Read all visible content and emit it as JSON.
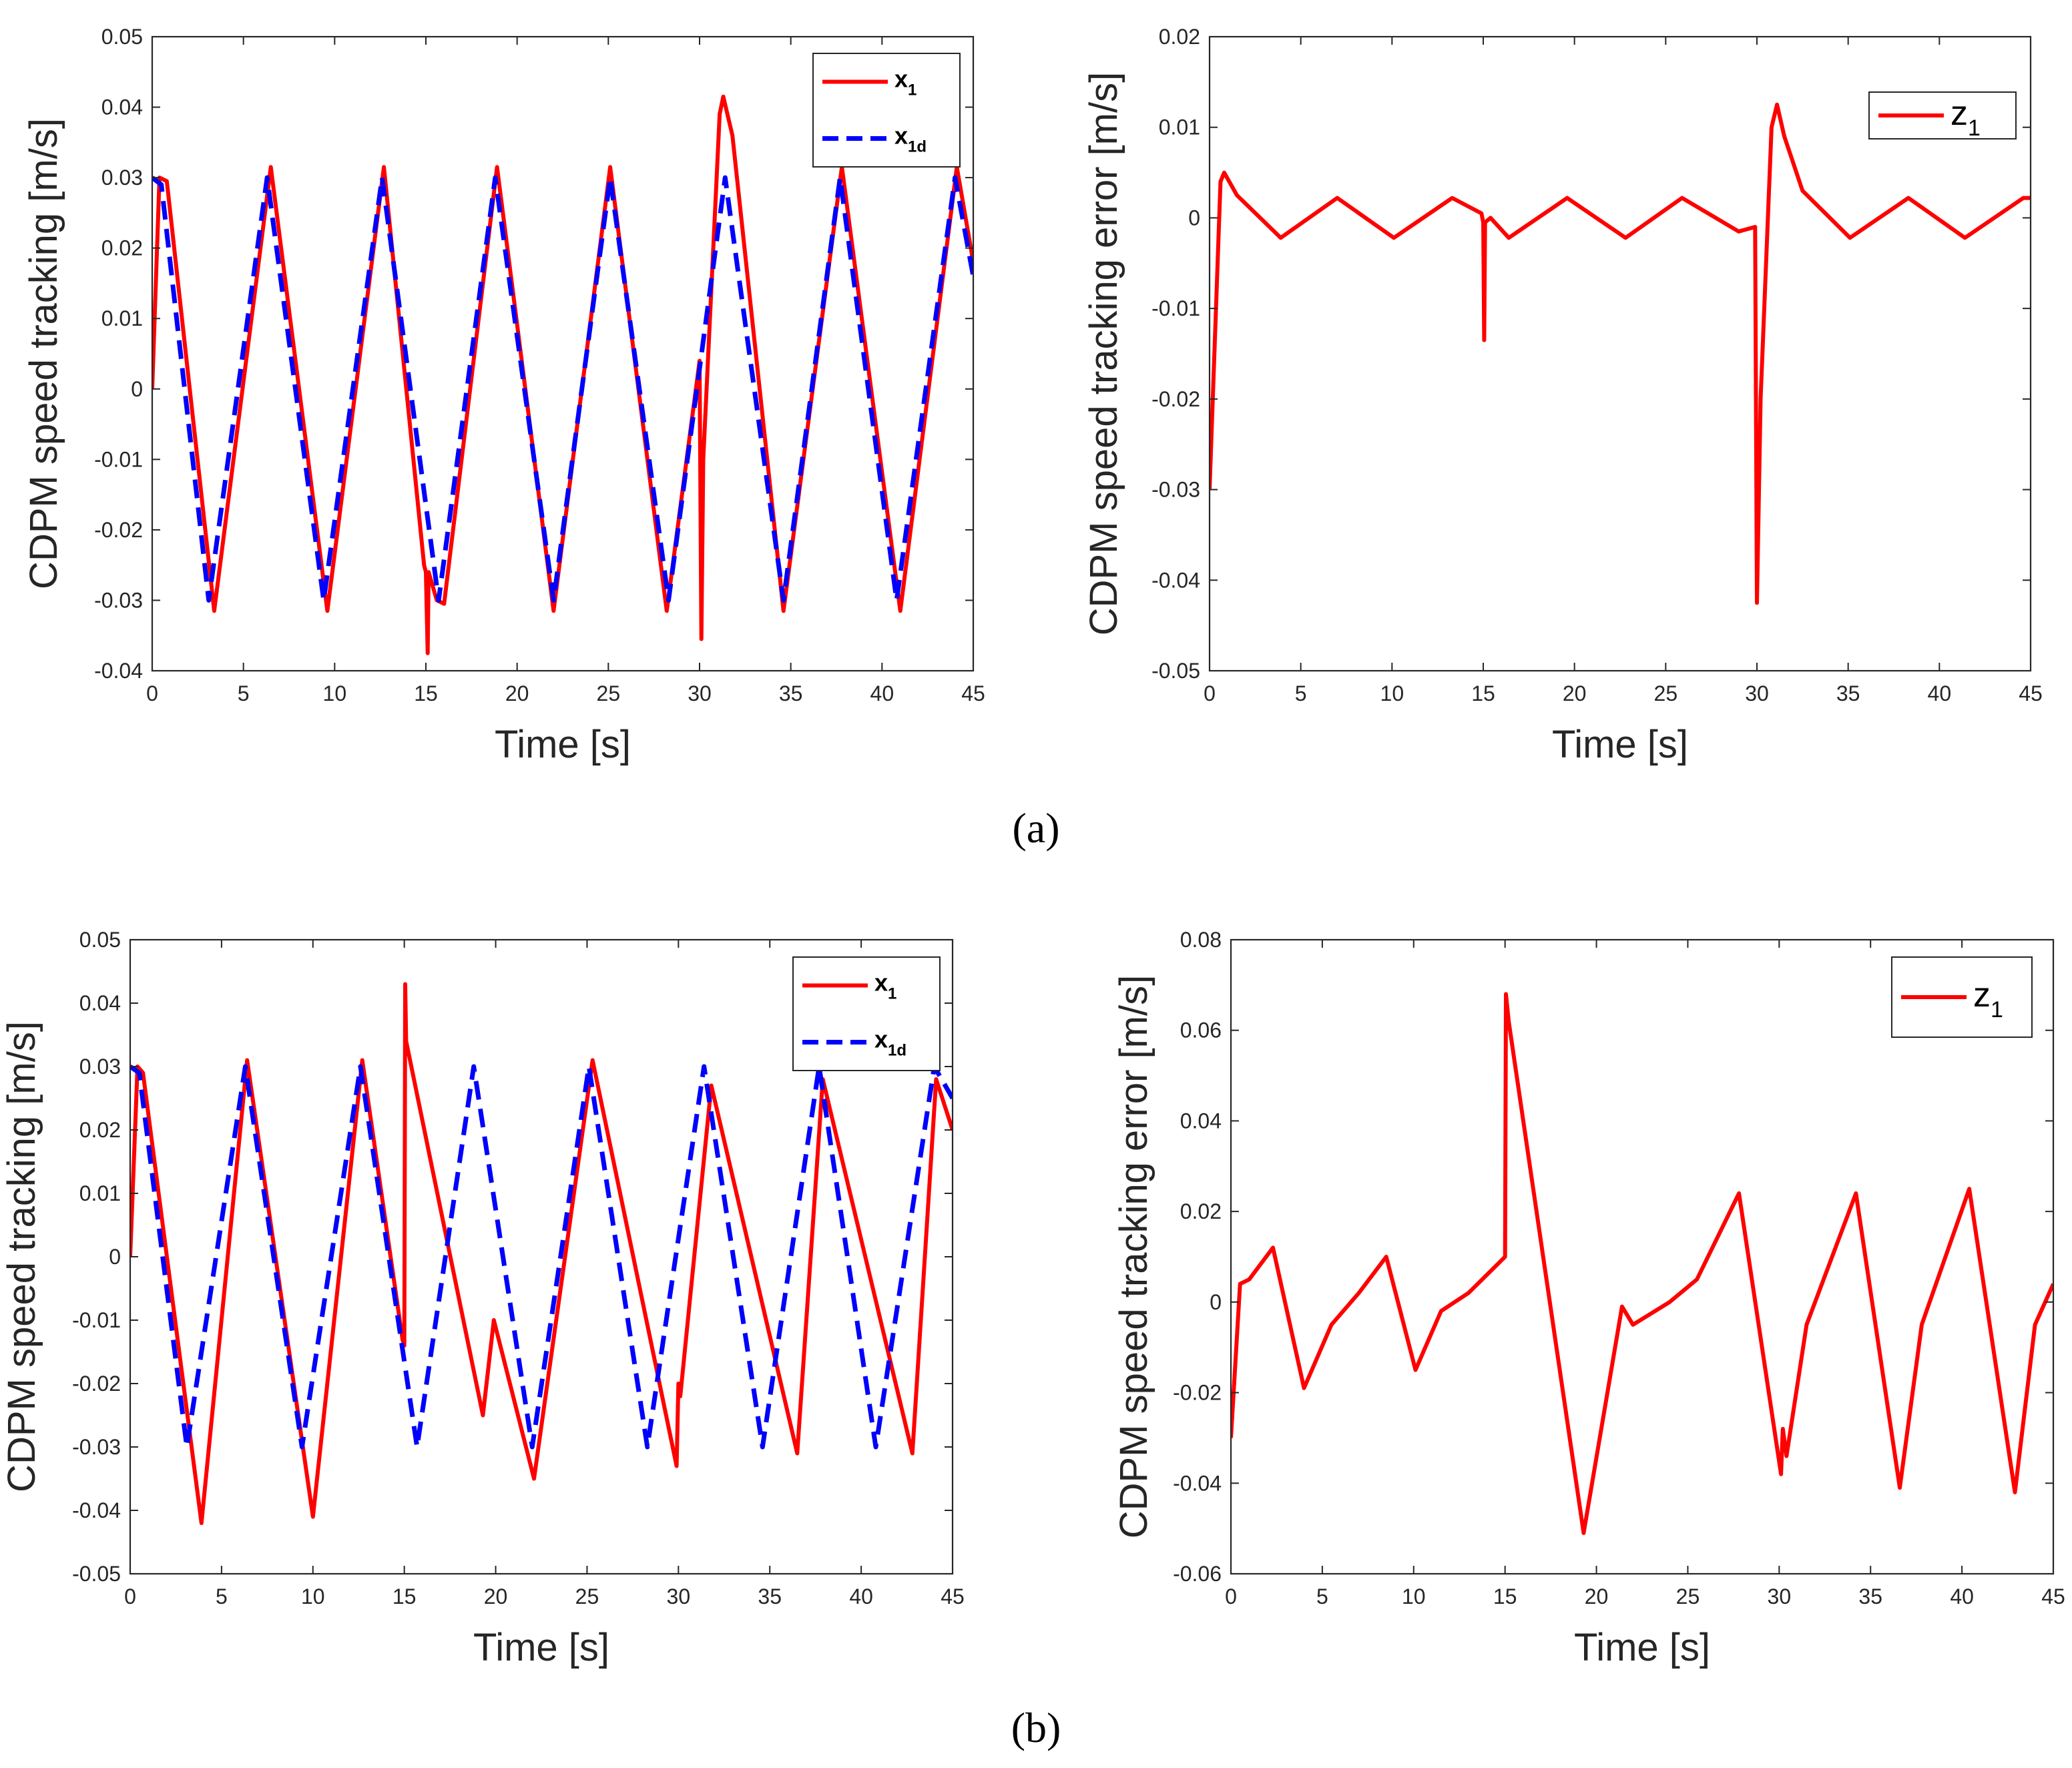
{
  "captions": {
    "a": "(a)",
    "b": "(b)"
  },
  "chart_data": [
    {
      "type": "line",
      "panel": "a",
      "title": "",
      "xlabel": "Time [s]",
      "ylabel": "CDPM speed tracking [m/s]",
      "xlim": [
        0,
        45
      ],
      "ylim": [
        -0.04,
        0.05
      ],
      "xticks": [
        0,
        5,
        10,
        15,
        20,
        25,
        30,
        35,
        40,
        45
      ],
      "yticks": [
        -0.04,
        -0.03,
        -0.02,
        -0.01,
        0,
        0.01,
        0.02,
        0.03,
        0.04,
        0.05
      ],
      "xtick_labels": [
        "0",
        "5",
        "10",
        "15",
        "20",
        "25",
        "30",
        "35",
        "40",
        "45"
      ],
      "ytick_labels": [
        "-0.04",
        "-0.03",
        "-0.02",
        "-0.01",
        "0",
        "0.01",
        "0.02",
        "0.03",
        "0.04",
        "0.05"
      ],
      "legend": {
        "placement": "top-right",
        "entries": [
          {
            "base": "x",
            "sub": "1"
          },
          {
            "base": "x",
            "sub": "1d"
          }
        ]
      },
      "series": [
        {
          "name": "x1",
          "color": "#ff0000",
          "style": "solid",
          "points": [
            [
              0,
              0
            ],
            [
              0.4,
              0.03
            ],
            [
              0.8,
              0.0295
            ],
            [
              3.4,
              -0.0315
            ],
            [
              6.5,
              0.0315
            ],
            [
              9.6,
              -0.0315
            ],
            [
              12.7,
              0.0315
            ],
            [
              14.9,
              -0.025
            ],
            [
              15.0,
              -0.026
            ],
            [
              15.1,
              -0.0375
            ],
            [
              15.15,
              -0.026
            ],
            [
              15.6,
              -0.03
            ],
            [
              16.0,
              -0.0305
            ],
            [
              18.9,
              0.0315
            ],
            [
              22.0,
              -0.0315
            ],
            [
              25.1,
              0.0315
            ],
            [
              28.2,
              -0.0315
            ],
            [
              29.9,
              0.002
            ],
            [
              30.0,
              0.004
            ],
            [
              30.1,
              -0.0355
            ],
            [
              30.2,
              -0.01
            ],
            [
              31.1,
              0.039
            ],
            [
              31.3,
              0.0415
            ],
            [
              31.8,
              0.036
            ],
            [
              34.6,
              -0.0315
            ],
            [
              37.8,
              0.0315
            ],
            [
              41.0,
              -0.0315
            ],
            [
              44.1,
              0.0315
            ],
            [
              45,
              0.018
            ]
          ]
        },
        {
          "name": "x1d",
          "color": "#0000ff",
          "style": "dashed",
          "points": [
            [
              0,
              0.03
            ],
            [
              0.5,
              0.029
            ],
            [
              3.1,
              -0.03
            ],
            [
              6.3,
              0.03
            ],
            [
              9.4,
              -0.03
            ],
            [
              12.6,
              0.03
            ],
            [
              15.7,
              -0.03
            ],
            [
              18.8,
              0.03
            ],
            [
              22.0,
              -0.03
            ],
            [
              25.1,
              0.03
            ],
            [
              28.3,
              -0.03
            ],
            [
              31.4,
              0.03
            ],
            [
              34.6,
              -0.03
            ],
            [
              37.7,
              0.03
            ],
            [
              40.8,
              -0.03
            ],
            [
              44.0,
              0.03
            ],
            [
              45,
              0.016
            ]
          ]
        }
      ]
    },
    {
      "type": "line",
      "panel": "a",
      "title": "",
      "xlabel": "Time [s]",
      "ylabel": "CDPM speed tracking error [m/s]",
      "xlim": [
        0,
        45
      ],
      "ylim": [
        -0.05,
        0.02
      ],
      "xticks": [
        0,
        5,
        10,
        15,
        20,
        25,
        30,
        35,
        40,
        45
      ],
      "yticks": [
        -0.05,
        -0.04,
        -0.03,
        -0.02,
        -0.01,
        0,
        0.01,
        0.02
      ],
      "xtick_labels": [
        "0",
        "5",
        "10",
        "15",
        "20",
        "25",
        "30",
        "35",
        "40",
        "45"
      ],
      "ytick_labels": [
        "-0.05",
        "-0.04",
        "-0.03",
        "-0.02",
        "-0.01",
        "0",
        "0.01",
        "0.02"
      ],
      "legend": {
        "placement": "top-right",
        "entries": [
          {
            "base": "z",
            "sub": "1"
          }
        ]
      },
      "series": [
        {
          "name": "z1",
          "color": "#ff0000",
          "style": "solid",
          "points": [
            [
              0,
              -0.03
            ],
            [
              0.6,
              0.004
            ],
            [
              0.8,
              0.005
            ],
            [
              1.5,
              0.0025
            ],
            [
              3.9,
              -0.0022
            ],
            [
              7.0,
              0.0022
            ],
            [
              10.1,
              -0.0022
            ],
            [
              13.3,
              0.0022
            ],
            [
              14.9,
              0.0005
            ],
            [
              15.0,
              -0.0005
            ],
            [
              15.05,
              -0.0135
            ],
            [
              15.1,
              -0.0005
            ],
            [
              15.4,
              0.0
            ],
            [
              16.4,
              -0.0022
            ],
            [
              19.6,
              0.0022
            ],
            [
              22.8,
              -0.0022
            ],
            [
              25.9,
              0.0022
            ],
            [
              29.0,
              -0.0015
            ],
            [
              29.9,
              -0.001
            ],
            [
              30.0,
              -0.0425
            ],
            [
              30.2,
              -0.02
            ],
            [
              30.8,
              0.01
            ],
            [
              31.1,
              0.0125
            ],
            [
              31.5,
              0.009
            ],
            [
              32.5,
              0.003
            ],
            [
              35.1,
              -0.0022
            ],
            [
              38.3,
              0.0022
            ],
            [
              41.4,
              -0.0022
            ],
            [
              44.6,
              0.0022
            ],
            [
              45,
              0.0022
            ]
          ]
        }
      ]
    },
    {
      "type": "line",
      "panel": "b",
      "title": "",
      "xlabel": "Time [s]",
      "ylabel": "CDPM speed tracking [m/s]",
      "xlim": [
        0,
        45
      ],
      "ylim": [
        -0.05,
        0.05
      ],
      "xticks": [
        0,
        5,
        10,
        15,
        20,
        25,
        30,
        35,
        40,
        45
      ],
      "yticks": [
        -0.05,
        -0.04,
        -0.03,
        -0.02,
        -0.01,
        0,
        0.01,
        0.02,
        0.03,
        0.04,
        0.05
      ],
      "xtick_labels": [
        "0",
        "5",
        "10",
        "15",
        "20",
        "25",
        "30",
        "35",
        "40",
        "45"
      ],
      "ytick_labels": [
        "-0.05",
        "-0.04",
        "-0.03",
        "-0.02",
        "-0.01",
        "0",
        "0.01",
        "0.02",
        "0.03",
        "0.04",
        "0.05"
      ],
      "legend": {
        "placement": "top-right",
        "entries": [
          {
            "base": "x",
            "sub": "1"
          },
          {
            "base": "x",
            "sub": "1d"
          }
        ]
      },
      "series": [
        {
          "name": "x1",
          "color": "#ff0000",
          "style": "solid",
          "points": [
            [
              0,
              0
            ],
            [
              0.4,
              0.03
            ],
            [
              0.7,
              0.029
            ],
            [
              3.9,
              -0.042
            ],
            [
              6.4,
              0.031
            ],
            [
              10.0,
              -0.041
            ],
            [
              12.7,
              0.031
            ],
            [
              14.9,
              -0.013
            ],
            [
              15.0,
              -0.014
            ],
            [
              15.05,
              0.043
            ],
            [
              15.1,
              0.034
            ],
            [
              19.3,
              -0.025
            ],
            [
              19.9,
              -0.01
            ],
            [
              22.1,
              -0.035
            ],
            [
              25.3,
              0.031
            ],
            [
              29.9,
              -0.033
            ],
            [
              30.0,
              -0.02
            ],
            [
              30.1,
              -0.022
            ],
            [
              31.8,
              0.027
            ],
            [
              36.5,
              -0.031
            ],
            [
              37.9,
              0.028
            ],
            [
              42.8,
              -0.031
            ],
            [
              44.1,
              0.028
            ],
            [
              45,
              0.02
            ]
          ]
        },
        {
          "name": "x1d",
          "color": "#0000ff",
          "style": "dashed",
          "points": [
            [
              0,
              0.03
            ],
            [
              0.5,
              0.029
            ],
            [
              3.1,
              -0.03
            ],
            [
              6.3,
              0.03
            ],
            [
              9.4,
              -0.03
            ],
            [
              12.6,
              0.03
            ],
            [
              15.7,
              -0.03
            ],
            [
              18.8,
              0.03
            ],
            [
              22.0,
              -0.03
            ],
            [
              25.1,
              0.03
            ],
            [
              28.3,
              -0.03
            ],
            [
              31.4,
              0.03
            ],
            [
              34.6,
              -0.03
            ],
            [
              37.7,
              0.03
            ],
            [
              40.8,
              -0.03
            ],
            [
              44.0,
              0.03
            ],
            [
              45,
              0.025
            ]
          ]
        }
      ]
    },
    {
      "type": "line",
      "panel": "b",
      "title": "",
      "xlabel": "Time [s]",
      "ylabel": "CDPM speed tracking error [m/s]",
      "xlim": [
        0,
        45
      ],
      "ylim": [
        -0.06,
        0.08
      ],
      "xticks": [
        0,
        5,
        10,
        15,
        20,
        25,
        30,
        35,
        40,
        45
      ],
      "yticks": [
        -0.06,
        -0.04,
        -0.02,
        0,
        0.02,
        0.04,
        0.06,
        0.08
      ],
      "xtick_labels": [
        "0",
        "5",
        "10",
        "15",
        "20",
        "25",
        "30",
        "35",
        "40",
        "45"
      ],
      "ytick_labels": [
        "-0.06",
        "-0.04",
        "-0.02",
        "0",
        "0.02",
        "0.04",
        "0.06",
        "0.08"
      ],
      "legend": {
        "placement": "top-right",
        "entries": [
          {
            "base": "z",
            "sub": "1"
          }
        ]
      },
      "series": [
        {
          "name": "z1",
          "color": "#ff0000",
          "style": "solid",
          "points": [
            [
              0,
              -0.03
            ],
            [
              0.5,
              0.004
            ],
            [
              1.0,
              0.005
            ],
            [
              2.3,
              0.012
            ],
            [
              4.0,
              -0.019
            ],
            [
              5.5,
              -0.005
            ],
            [
              7.0,
              0.002
            ],
            [
              8.5,
              0.01
            ],
            [
              10.1,
              -0.015
            ],
            [
              11.5,
              -0.002
            ],
            [
              13.0,
              0.002
            ],
            [
              14.5,
              0.008
            ],
            [
              15.0,
              0.01
            ],
            [
              15.05,
              0.068
            ],
            [
              15.2,
              0.062
            ],
            [
              19.3,
              -0.051
            ],
            [
              21.4,
              -0.001
            ],
            [
              22.0,
              -0.005
            ],
            [
              24.0,
              0.0
            ],
            [
              25.5,
              0.005
            ],
            [
              27.8,
              0.024
            ],
            [
              30.1,
              -0.038
            ],
            [
              30.2,
              -0.028
            ],
            [
              30.4,
              -0.034
            ],
            [
              31.5,
              -0.005
            ],
            [
              34.2,
              0.024
            ],
            [
              36.6,
              -0.041
            ],
            [
              37.8,
              -0.005
            ],
            [
              40.4,
              0.025
            ],
            [
              42.9,
              -0.042
            ],
            [
              44.0,
              -0.005
            ],
            [
              45,
              0.004
            ]
          ]
        }
      ]
    }
  ]
}
